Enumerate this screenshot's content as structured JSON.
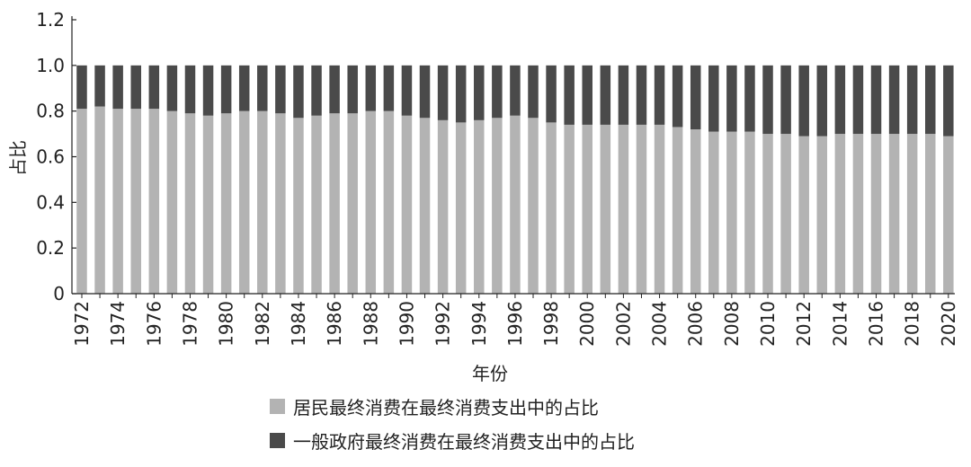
{
  "chart_data": {
    "type": "bar",
    "stacked": true,
    "xlabel": "年份",
    "ylabel": "占比",
    "ylim": [
      0,
      1.2
    ],
    "yticks": [
      0,
      0.2,
      0.4,
      0.6,
      0.8,
      1.0,
      1.2
    ],
    "ytick_labels": [
      "0",
      "0.2",
      "0.4",
      "0.6",
      "0.8",
      "1.0",
      "1.2"
    ],
    "xtick_labels": [
      "1972",
      "1974",
      "1976",
      "1978",
      "1980",
      "1982",
      "1984",
      "1986",
      "1988",
      "1990",
      "1992",
      "1994",
      "1996",
      "1998",
      "2000",
      "2002",
      "2004",
      "2006",
      "2008",
      "2010",
      "2012",
      "2014",
      "2016",
      "2018",
      "2020"
    ],
    "categories": [
      "1972",
      "1973",
      "1974",
      "1975",
      "1976",
      "1977",
      "1978",
      "1979",
      "1980",
      "1981",
      "1982",
      "1983",
      "1984",
      "1985",
      "1986",
      "1987",
      "1988",
      "1989",
      "1990",
      "1991",
      "1992",
      "1993",
      "1994",
      "1995",
      "1996",
      "1997",
      "1998",
      "1999",
      "2000",
      "2001",
      "2002",
      "2003",
      "2004",
      "2005",
      "2006",
      "2007",
      "2008",
      "2009",
      "2010",
      "2011",
      "2012",
      "2013",
      "2014",
      "2015",
      "2016",
      "2017",
      "2018",
      "2019",
      "2020"
    ],
    "series": [
      {
        "name": "居民最终消费在最终消费支出中的占比",
        "color": "#b3b3b3",
        "values": [
          0.81,
          0.82,
          0.81,
          0.81,
          0.81,
          0.8,
          0.79,
          0.78,
          0.79,
          0.8,
          0.8,
          0.79,
          0.77,
          0.78,
          0.79,
          0.79,
          0.8,
          0.8,
          0.78,
          0.77,
          0.76,
          0.75,
          0.76,
          0.77,
          0.78,
          0.77,
          0.75,
          0.74,
          0.74,
          0.74,
          0.74,
          0.74,
          0.74,
          0.73,
          0.72,
          0.71,
          0.71,
          0.71,
          0.7,
          0.7,
          0.69,
          0.69,
          0.7,
          0.7,
          0.7,
          0.7,
          0.7,
          0.7,
          0.69
        ]
      },
      {
        "name": "一般政府最终消费在最终消费支出中的占比",
        "color": "#4a4a4a",
        "values": [
          0.19,
          0.18,
          0.19,
          0.19,
          0.19,
          0.2,
          0.21,
          0.22,
          0.21,
          0.2,
          0.2,
          0.21,
          0.23,
          0.22,
          0.21,
          0.21,
          0.2,
          0.2,
          0.22,
          0.23,
          0.24,
          0.25,
          0.24,
          0.23,
          0.22,
          0.23,
          0.25,
          0.26,
          0.26,
          0.26,
          0.26,
          0.26,
          0.26,
          0.27,
          0.28,
          0.29,
          0.29,
          0.29,
          0.3,
          0.3,
          0.31,
          0.31,
          0.3,
          0.3,
          0.3,
          0.3,
          0.3,
          0.3,
          0.31
        ]
      }
    ],
    "legend_position": "bottom"
  }
}
